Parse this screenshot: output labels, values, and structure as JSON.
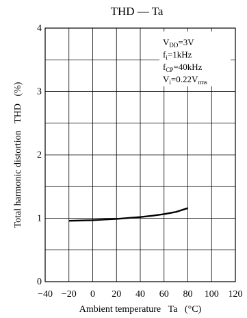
{
  "chart_data": {
    "type": "line",
    "title": "THD — Ta",
    "xlabel": "Ambient temperature   Ta   (°C)",
    "ylabel": "Total harmonic distortion   THD   (%)",
    "xlim": [
      -40,
      120
    ],
    "ylim": [
      0,
      4
    ],
    "x_ticks": [
      -40,
      -20,
      0,
      20,
      40,
      60,
      80,
      100,
      120
    ],
    "x_tick_labels": [
      "−40",
      "−20",
      "0",
      "20",
      "40",
      "60",
      "80",
      "100",
      "120"
    ],
    "y_ticks": [
      0,
      1,
      2,
      3,
      4
    ],
    "y_tick_labels": [
      "0",
      "1",
      "2",
      "3",
      "4"
    ],
    "grid": true,
    "grid_x_step": 20,
    "grid_y_step": 0.5,
    "series": [
      {
        "x": [
          -20,
          -10,
          0,
          10,
          20,
          30,
          40,
          50,
          60,
          70,
          80
        ],
        "y": [
          0.96,
          0.965,
          0.97,
          0.98,
          0.99,
          1.005,
          1.02,
          1.04,
          1.065,
          1.1,
          1.16
        ]
      }
    ],
    "annotation": {
      "lines": [
        {
          "parts": [
            {
              "text": "V"
            },
            {
              "text": "DD",
              "sub": true
            },
            {
              "text": "=3V"
            }
          ]
        },
        {
          "parts": [
            {
              "text": "f"
            },
            {
              "text": "i",
              "sub": true
            },
            {
              "text": "=1kHz"
            }
          ]
        },
        {
          "parts": [
            {
              "text": "f"
            },
            {
              "text": "CP",
              "sub": true
            },
            {
              "text": "=40kHz"
            }
          ]
        },
        {
          "parts": [
            {
              "text": "V"
            },
            {
              "text": "i",
              "sub": true
            },
            {
              "text": "=0.22V"
            },
            {
              "text": "rms",
              "sub": true
            }
          ]
        }
      ]
    }
  }
}
